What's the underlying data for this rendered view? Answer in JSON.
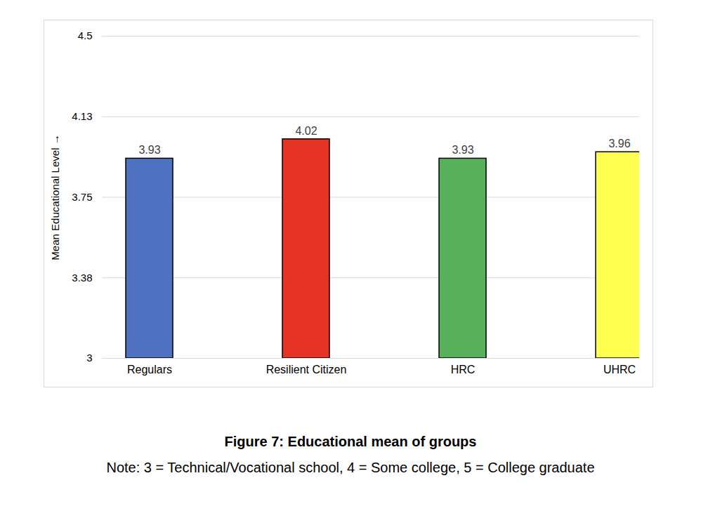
{
  "chart_data": {
    "type": "bar",
    "caption": "Figure 7: Educational mean of groups",
    "note": "Note: 3 = Technical/Vocational school, 4 = Some college, 5 = College graduate",
    "y_label": "Mean Educational Level",
    "categories": [
      "Regulars",
      "Resilient Citizen",
      "HRC",
      "UHRC"
    ],
    "values": [
      3.93,
      4.02,
      3.93,
      3.96
    ],
    "colors": [
      "#4e72c0",
      "#e63323",
      "#57b05a",
      "#ffff4f"
    ],
    "ylim": [
      3,
      4.5
    ],
    "yticks": [
      3,
      {
        "value": 3.375,
        "label": "3.38"
      },
      3.75,
      {
        "value": 4.125,
        "label": "4.13"
      },
      4.5
    ],
    "grid": true,
    "data_labels": true
  }
}
